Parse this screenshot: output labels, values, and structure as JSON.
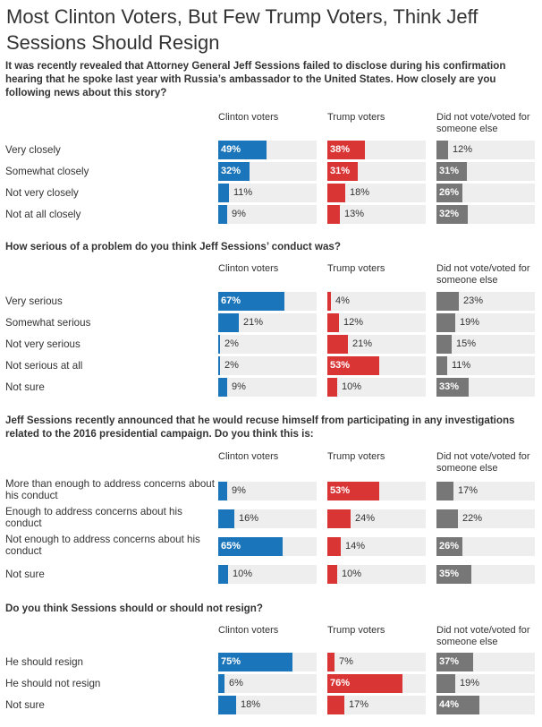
{
  "title": "Most Clinton Voters, But Few Trump Voters, Think Jeff Sessions Should Resign",
  "columns": [
    "Clinton voters",
    "Trump voters",
    "Did not vote/voted for someone else"
  ],
  "colors": {
    "clinton": "#1a75bb",
    "trump": "#d93535",
    "other": "#777777",
    "track": "#eeeeee"
  },
  "chart_data": [
    {
      "type": "bar",
      "question": "It was recently revealed that Attorney General Jeff Sessions failed to disclose during his confirmation hearing that he spoke last year with Russia’s ambassador to the United States. How closely are you following news about this story?",
      "categories": [
        "Very closely",
        "Somewhat closely",
        "Not very closely",
        "Not at all closely"
      ],
      "series": [
        {
          "name": "Clinton voters",
          "values": [
            49,
            32,
            11,
            9
          ]
        },
        {
          "name": "Trump voters",
          "values": [
            38,
            31,
            18,
            13
          ]
        },
        {
          "name": "Did not vote/voted for someone else",
          "values": [
            12,
            31,
            26,
            32
          ]
        }
      ]
    },
    {
      "type": "bar",
      "question": "How serious of a problem do you think Jeff Sessions’ conduct was?",
      "categories": [
        "Very serious",
        "Somewhat serious",
        "Not very serious",
        "Not serious at all",
        "Not sure"
      ],
      "series": [
        {
          "name": "Clinton voters",
          "values": [
            67,
            21,
            2,
            2,
            9
          ]
        },
        {
          "name": "Trump voters",
          "values": [
            4,
            12,
            21,
            53,
            10
          ]
        },
        {
          "name": "Did not vote/voted for someone else",
          "values": [
            23,
            19,
            15,
            11,
            33
          ]
        }
      ]
    },
    {
      "type": "bar",
      "question": "Jeff Sessions recently announced that he would recuse himself from participating in any investigations related to the 2016 presidential campaign. Do you think this is:",
      "categories": [
        "More than enough to address concerns about his conduct",
        "Enough to address concerns about his conduct",
        "Not enough to address concerns about his conduct",
        "Not sure"
      ],
      "series": [
        {
          "name": "Clinton voters",
          "values": [
            9,
            16,
            65,
            10
          ]
        },
        {
          "name": "Trump voters",
          "values": [
            53,
            24,
            14,
            10
          ]
        },
        {
          "name": "Did not vote/voted for someone else",
          "values": [
            17,
            22,
            26,
            35
          ]
        }
      ]
    },
    {
      "type": "bar",
      "question": "Do you think Sessions should or should not resign?",
      "categories": [
        "He should resign",
        "He should not resign",
        "Not sure"
      ],
      "series": [
        {
          "name": "Clinton voters",
          "values": [
            75,
            6,
            18
          ]
        },
        {
          "name": "Trump voters",
          "values": [
            7,
            76,
            17
          ]
        },
        {
          "name": "Did not vote/voted for someone else",
          "values": [
            37,
            19,
            44
          ]
        }
      ]
    }
  ]
}
